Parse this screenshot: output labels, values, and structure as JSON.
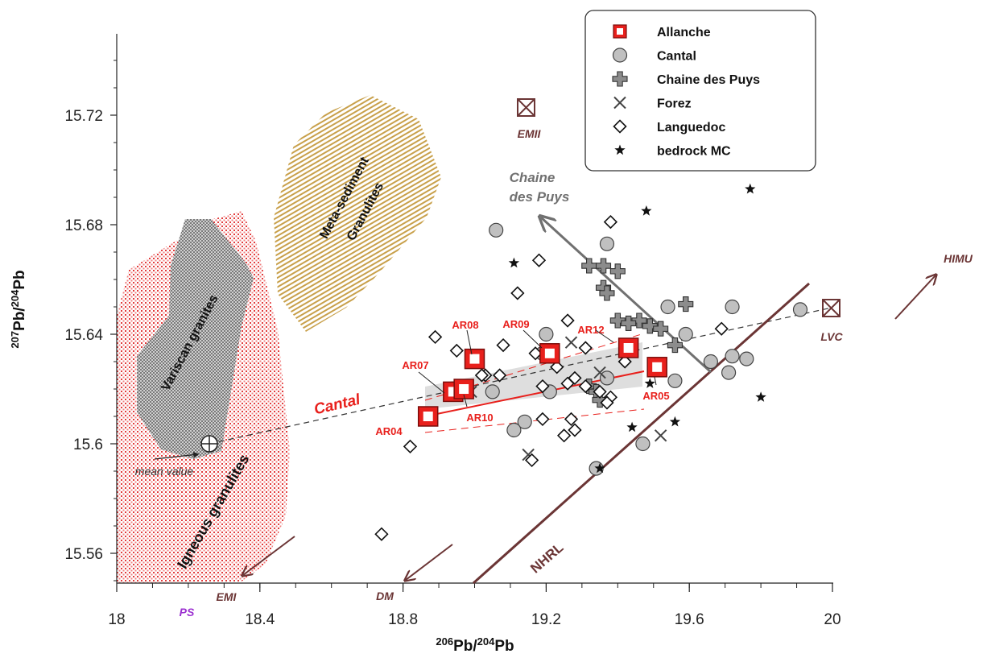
{
  "chart_data": {
    "type": "scatter",
    "xlabel": "206Pb/204Pb",
    "ylabel": "207Pb/204Pb",
    "xlim": [
      18,
      20
    ],
    "ylim": [
      15.55,
      15.75
    ],
    "xticks": [
      "18",
      "18.4",
      "18.8",
      "19.2",
      "19.6",
      "20"
    ],
    "yticks": [
      "15.56",
      "15.6",
      "15.64",
      "15.68",
      "15.72"
    ],
    "legend_position": "top-right",
    "legend": [
      "Allanche",
      "Cantal",
      "Chaine des Puys",
      "Forez",
      "Languedoc",
      "bedrock MC"
    ],
    "colors": {
      "allanche": "#e8201c",
      "cantal_fill": "#c0c0c0",
      "brown": "#6b3535",
      "ps": "#9b30d0",
      "gray_arrow": "#707070",
      "granulite_red": "#e04040",
      "variscan": "#909090",
      "meta": "#c8a850"
    },
    "series": [
      {
        "name": "Allanche",
        "marker": "red-square",
        "points": [
          {
            "x": 18.87,
            "y": 15.61,
            "label": "AR04"
          },
          {
            "x": 18.94,
            "y": 15.619,
            "label": "AR07"
          },
          {
            "x": 18.97,
            "y": 15.62,
            "label": "AR10"
          },
          {
            "x": 19.0,
            "y": 15.631,
            "label": "AR08"
          },
          {
            "x": 19.21,
            "y": 15.633,
            "label": "AR09"
          },
          {
            "x": 19.43,
            "y": 15.635,
            "label": "AR12"
          },
          {
            "x": 19.51,
            "y": 15.628,
            "label": "AR05"
          }
        ]
      },
      {
        "name": "Cantal",
        "marker": "gray-circle",
        "points": [
          [
            19.06,
            15.678
          ],
          [
            19.37,
            15.673
          ],
          [
            19.54,
            15.65
          ],
          [
            19.59,
            15.64
          ],
          [
            19.72,
            15.65
          ],
          [
            19.91,
            15.649
          ],
          [
            19.2,
            15.64
          ],
          [
            19.19,
            15.633
          ],
          [
            19.05,
            15.619
          ],
          [
            19.14,
            15.608
          ],
          [
            19.11,
            15.605
          ],
          [
            19.21,
            15.619
          ],
          [
            19.37,
            15.624
          ],
          [
            19.47,
            15.6
          ],
          [
            19.34,
            15.591
          ],
          [
            19.56,
            15.623
          ],
          [
            19.66,
            15.63
          ],
          [
            19.71,
            15.626
          ],
          [
            19.72,
            15.632
          ],
          [
            19.76,
            15.631
          ]
        ]
      },
      {
        "name": "Chaine des Puys",
        "marker": "plus",
        "points": [
          [
            19.32,
            15.665
          ],
          [
            19.36,
            15.665
          ],
          [
            19.4,
            15.663
          ],
          [
            19.36,
            15.657
          ],
          [
            19.37,
            15.655
          ],
          [
            19.59,
            15.651
          ],
          [
            19.4,
            15.645
          ],
          [
            19.46,
            15.645
          ],
          [
            19.49,
            15.643
          ],
          [
            19.52,
            15.642
          ],
          [
            19.43,
            15.644
          ],
          [
            19.56,
            15.636
          ],
          [
            19.32,
            15.621
          ],
          [
            19.34,
            15.619
          ],
          [
            19.35,
            15.616
          ]
        ]
      },
      {
        "name": "Forez",
        "marker": "x",
        "points": [
          [
            19.27,
            15.637
          ],
          [
            18.99,
            15.619
          ],
          [
            19.15,
            15.596
          ],
          [
            19.52,
            15.603
          ],
          [
            19.35,
            15.626
          ]
        ]
      },
      {
        "name": "Languedoc",
        "marker": "open-diamond",
        "points": [
          [
            19.38,
            15.681
          ],
          [
            19.18,
            15.667
          ],
          [
            19.12,
            15.655
          ],
          [
            19.26,
            15.645
          ],
          [
            18.89,
            15.639
          ],
          [
            19.08,
            15.636
          ],
          [
            19.17,
            15.633
          ],
          [
            18.95,
            15.634
          ],
          [
            19.03,
            15.625
          ],
          [
            19.07,
            15.625
          ],
          [
            19.02,
            15.625
          ],
          [
            19.19,
            15.621
          ],
          [
            19.26,
            15.622
          ],
          [
            19.28,
            15.624
          ],
          [
            19.31,
            15.621
          ],
          [
            19.27,
            15.609
          ],
          [
            19.19,
            15.609
          ],
          [
            19.25,
            15.603
          ],
          [
            19.28,
            15.605
          ],
          [
            19.16,
            15.594
          ],
          [
            19.35,
            15.619
          ],
          [
            19.38,
            15.617
          ],
          [
            19.37,
            15.615
          ],
          [
            19.23,
            15.628
          ],
          [
            19.31,
            15.635
          ],
          [
            19.69,
            15.642
          ],
          [
            18.82,
            15.599
          ],
          [
            18.74,
            15.567
          ],
          [
            19.42,
            15.63
          ]
        ]
      },
      {
        "name": "bedrock MC",
        "marker": "star",
        "points": [
          [
            19.77,
            15.693
          ],
          [
            19.48,
            15.685
          ],
          [
            19.11,
            15.666
          ],
          [
            19.8,
            15.617
          ],
          [
            19.49,
            15.622
          ],
          [
            19.44,
            15.606
          ],
          [
            19.56,
            15.608
          ],
          [
            19.35,
            15.591
          ]
        ]
      }
    ],
    "annotations": {
      "emii": "EMII",
      "himu": "HIMU",
      "lvc": "LVC",
      "emi": "EMI",
      "dm": "DM",
      "ps": "PS",
      "nhrl": "NHRL",
      "cantal_trend": "Cantal",
      "chaine_des_puys_1": "Chaine",
      "chaine_des_puys_2": "des Puys",
      "mean_value": "mean value",
      "meta_1": "Meta-sediment",
      "meta_2": "Granulites",
      "variscan": "Variscan granites",
      "igneous": "Igneous granulites"
    }
  }
}
